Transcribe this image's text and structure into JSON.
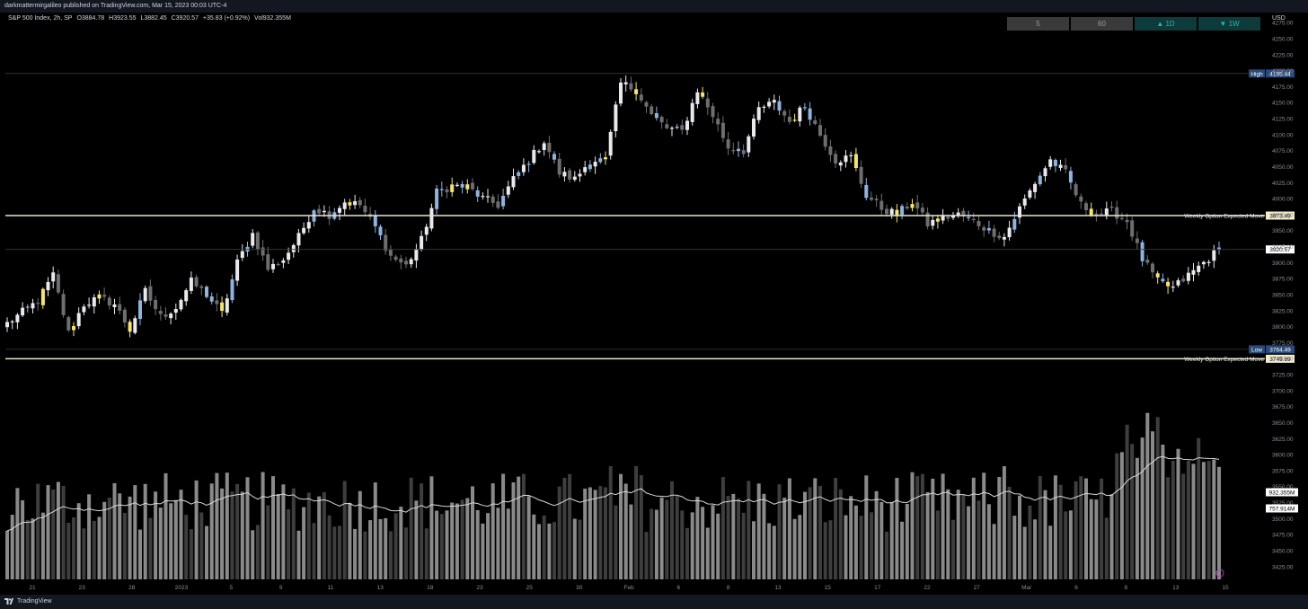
{
  "header": {
    "publisher": "darkmattermirgalileo published on TradingView.com, Mar 15, 2023 00:03 UTC-4"
  },
  "legend": {
    "symbol": "S&P 500 Index, 2h, SP",
    "open": "O3884.78",
    "high": "H3923.55",
    "low": "L3882.45",
    "close": "C3920.57",
    "change": "+35.83 (+0.92%)",
    "volume": "Vol932.355M"
  },
  "price_axis": {
    "currency": "USD",
    "ticks": [
      "4275.00",
      "4250.00",
      "4225.00",
      "4200.00",
      "4175.00",
      "4150.00",
      "4125.00",
      "4100.00",
      "4075.00",
      "4050.00",
      "4025.00",
      "4000.00",
      "3975.00",
      "3950.00",
      "3925.00",
      "3900.00",
      "3875.00",
      "3850.00",
      "3825.00",
      "3800.00",
      "3775.00",
      "3750.00",
      "3725.00",
      "3700.00",
      "3675.00",
      "3650.00",
      "3625.00",
      "3600.00",
      "3575.00",
      "3550.00",
      "3525.00",
      "3500.00",
      "3475.00",
      "3450.00",
      "3425.00"
    ]
  },
  "timeframe_buttons": [
    {
      "label": "5"
    },
    {
      "label": "60"
    },
    {
      "label": "▲ 1D"
    },
    {
      "label": "▼ 1W"
    }
  ],
  "footer": {
    "brand": "TradingView"
  },
  "colors": {
    "background": "#000000",
    "candle_white": "#e8e8ee",
    "candle_blue": "#8db4e0",
    "candle_yellow": "#f5e66a",
    "candle_gray": "#6e6e6e",
    "line_level": "#e8e6d0",
    "high_low_badge": "#2a4a7a",
    "volume_bar_light": "#8a8a8a",
    "volume_bar_dark": "#3e3e3e",
    "volume_ma": "#d8d8d8"
  },
  "chart_data": {
    "type": "candlestick",
    "symbol": "S&P 500 Index, 2h, SP",
    "x_tick_labels": [
      "21",
      "23",
      "28",
      "2023",
      "5",
      "9",
      "11",
      "13",
      "18",
      "23",
      "25",
      "30",
      "Feb",
      "6",
      "8",
      "13",
      "15",
      "17",
      "22",
      "27",
      "Mar",
      "6",
      "8",
      "13",
      "15"
    ],
    "y_range": [
      3405,
      4285
    ],
    "levels": [
      {
        "label": "High",
        "value": 4195.44,
        "badge": "4195.44"
      },
      {
        "label": "Weekly Option Expected Move",
        "value": 3973.49,
        "badge": "3973.49"
      },
      {
        "label": "",
        "value": 3920.57,
        "badge": "3920.57"
      },
      {
        "label": "Low",
        "value": 3764.49,
        "badge": "3764.49"
      },
      {
        "label": "Weekly Option Expected Move",
        "value": 3749.69,
        "badge": "3749.69"
      }
    ],
    "volume_labels": [
      "932.355M",
      "757.914M"
    ],
    "close_path": [
      [
        0,
        3805
      ],
      [
        6,
        3840
      ],
      [
        9,
        3880
      ],
      [
        12,
        3790
      ],
      [
        15,
        3835
      ],
      [
        18,
        3845
      ],
      [
        21,
        3835
      ],
      [
        24,
        3795
      ],
      [
        27,
        3855
      ],
      [
        30,
        3815
      ],
      [
        33,
        3830
      ],
      [
        36,
        3870
      ],
      [
        39,
        3850
      ],
      [
        42,
        3820
      ],
      [
        45,
        3900
      ],
      [
        48,
        3945
      ],
      [
        51,
        3890
      ],
      [
        54,
        3905
      ],
      [
        57,
        3940
      ],
      [
        60,
        3985
      ],
      [
        63,
        3975
      ],
      [
        66,
        3995
      ],
      [
        69,
        3990
      ],
      [
        72,
        3955
      ],
      [
        75,
        3910
      ],
      [
        78,
        3895
      ],
      [
        81,
        3935
      ],
      [
        84,
        4010
      ],
      [
        87,
        4020
      ],
      [
        90,
        4018
      ],
      [
        93,
        4000
      ],
      [
        96,
        3990
      ],
      [
        99,
        4030
      ],
      [
        102,
        4060
      ],
      [
        105,
        4090
      ],
      [
        108,
        4040
      ],
      [
        111,
        4030
      ],
      [
        114,
        4060
      ],
      [
        117,
        4060
      ],
      [
        120,
        4180
      ],
      [
        123,
        4170
      ],
      [
        126,
        4130
      ],
      [
        129,
        4110
      ],
      [
        132,
        4105
      ],
      [
        135,
        4170
      ],
      [
        138,
        4130
      ],
      [
        141,
        4080
      ],
      [
        144,
        4075
      ],
      [
        147,
        4140
      ],
      [
        150,
        4150
      ],
      [
        153,
        4120
      ],
      [
        156,
        4145
      ],
      [
        159,
        4100
      ],
      [
        162,
        4060
      ],
      [
        165,
        4065
      ],
      [
        168,
        4005
      ],
      [
        171,
        3985
      ],
      [
        174,
        3975
      ],
      [
        177,
        3995
      ],
      [
        180,
        3960
      ],
      [
        183,
        3970
      ],
      [
        186,
        3975
      ],
      [
        189,
        3965
      ],
      [
        192,
        3950
      ],
      [
        195,
        3940
      ],
      [
        198,
        3985
      ],
      [
        201,
        4025
      ],
      [
        204,
        4060
      ],
      [
        207,
        4040
      ],
      [
        210,
        3990
      ],
      [
        213,
        3975
      ],
      [
        216,
        3980
      ],
      [
        219,
        3965
      ],
      [
        222,
        3905
      ],
      [
        225,
        3870
      ],
      [
        228,
        3860
      ],
      [
        231,
        3880
      ],
      [
        234,
        3900
      ],
      [
        237,
        3920
      ]
    ]
  }
}
